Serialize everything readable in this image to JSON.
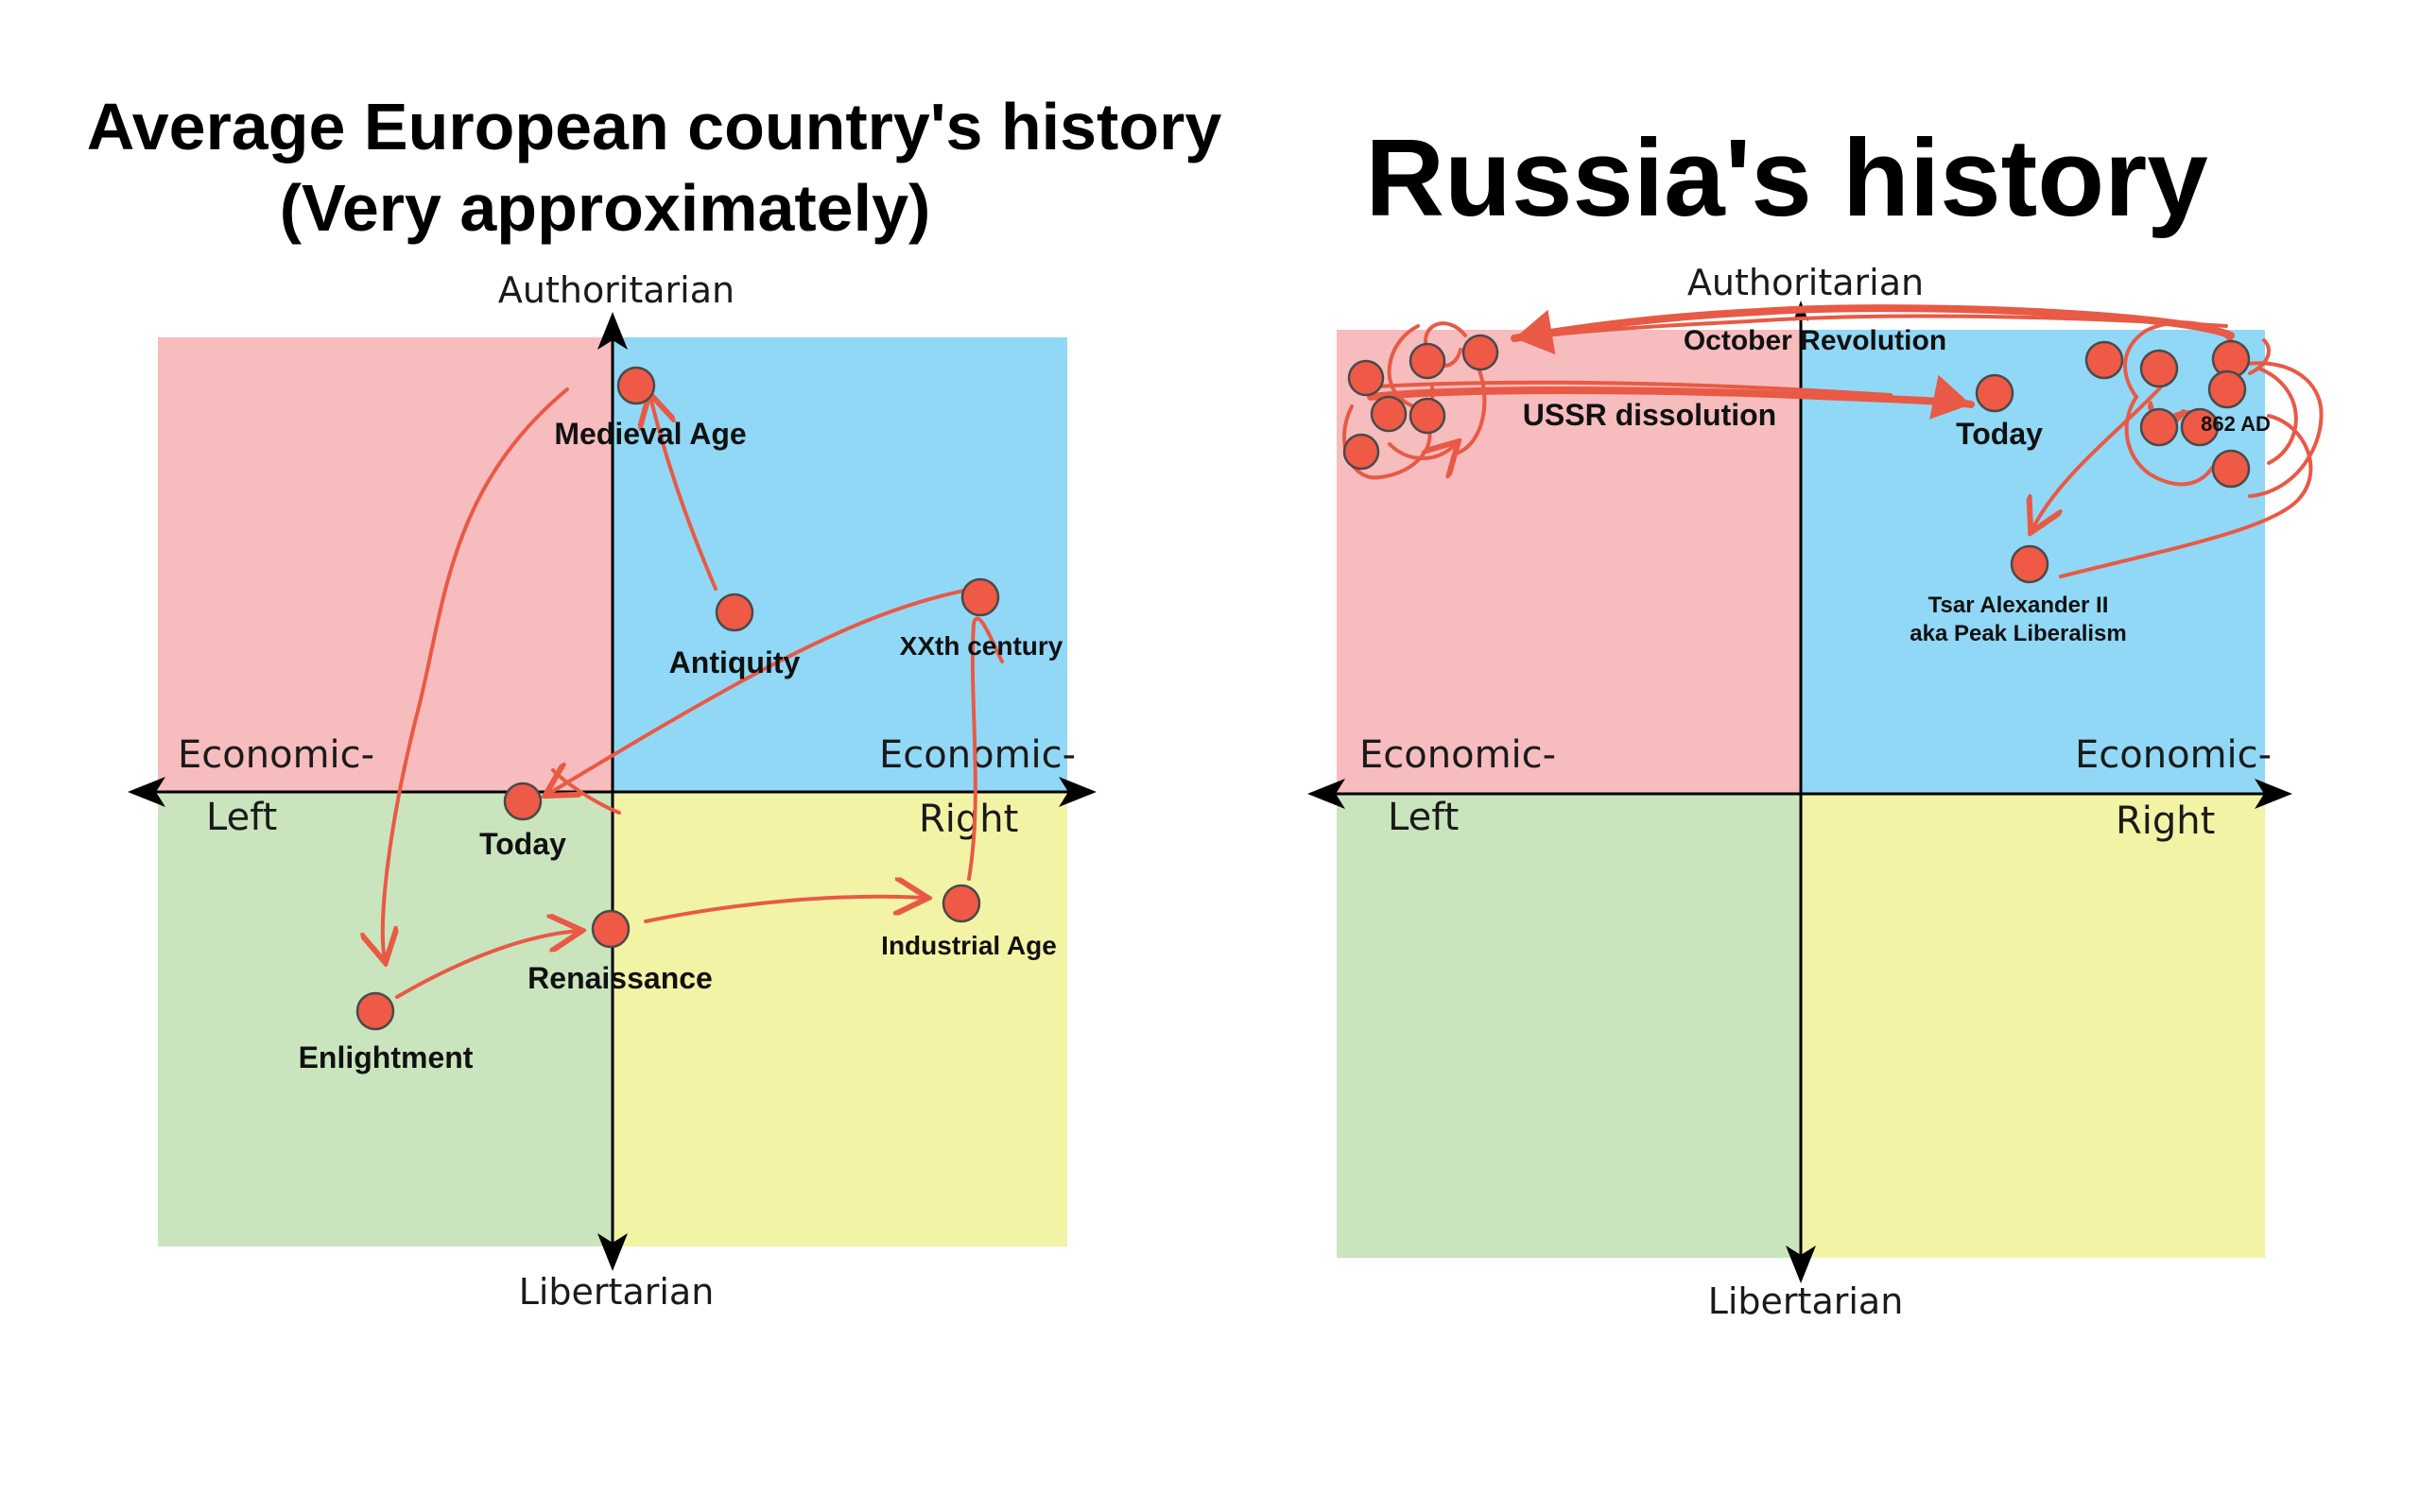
{
  "colors": {
    "quad_auth_left": "#f7bcbd",
    "quad_auth_right": "#91d8f6",
    "quad_lib_left": "#cae5bd",
    "quad_lib_right": "#f3f3a6",
    "marker": "#ee5a46",
    "arrow": "#e85a45"
  },
  "left_panel": {
    "title_line1": "Average European country's history",
    "title_line2": "(Very approximately)",
    "axis": {
      "top": "Authoritarian",
      "bottom": "Libertarian",
      "left_line1": "Economic-",
      "left_line2": "Left",
      "right_line1": "Economic-",
      "right_line2": "Right"
    },
    "points": {
      "medieval": "Medieval Age",
      "antiquity": "Antiquity",
      "xxth": "XXth century",
      "today": "Today",
      "industrial": "Industrial Age",
      "renaissance": "Renaissance",
      "enlightment": "Enlightment"
    }
  },
  "right_panel": {
    "title": "Russia's history",
    "axis": {
      "top": "Authoritarian",
      "bottom": "Libertarian",
      "left_line1": "Economic-",
      "left_line2": "Left",
      "right_line1": "Economic-",
      "right_line2": "Right"
    },
    "points": {
      "october": "October Revolution",
      "ussr": "USSR dissolution",
      "today": "Today",
      "ad862": "862 AD",
      "tsar_line1": "Tsar Alexander II",
      "tsar_line2": "aka Peak Liberalism"
    }
  }
}
